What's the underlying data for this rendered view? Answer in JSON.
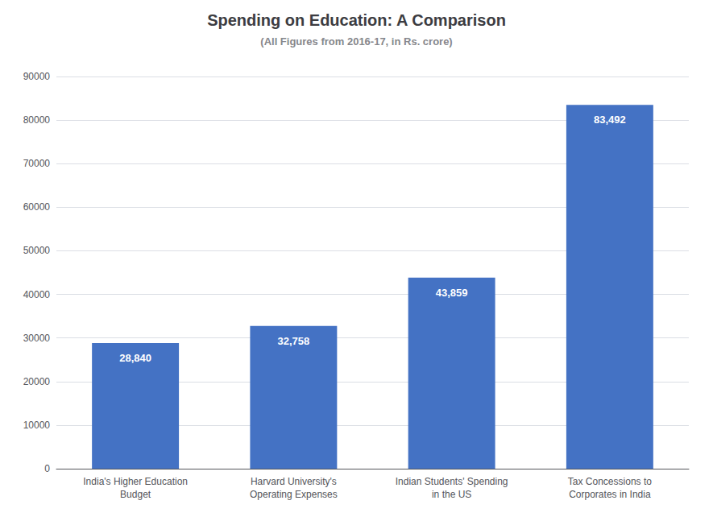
{
  "chart_data": {
    "type": "bar",
    "title": "Spending on Education: A Comparison",
    "subtitle": "(All Figures from 2016-17, in Rs. crore)",
    "categories": [
      "India's Higher Education\nBudget",
      "Harvard University's\nOperating Expenses",
      "Indian Students' Spending\nin the US",
      "Tax Concessions to\nCorporates in India"
    ],
    "values": [
      28840,
      32758,
      43859,
      83492
    ],
    "value_labels": [
      "28,840",
      "32,758",
      "43,859",
      "83,492"
    ],
    "data_labels": true,
    "color": "#4472C4",
    "ylim": [
      0,
      90000
    ],
    "yticks": [
      0,
      10000,
      20000,
      30000,
      40000,
      50000,
      60000,
      70000,
      80000,
      90000
    ],
    "grid": true
  }
}
